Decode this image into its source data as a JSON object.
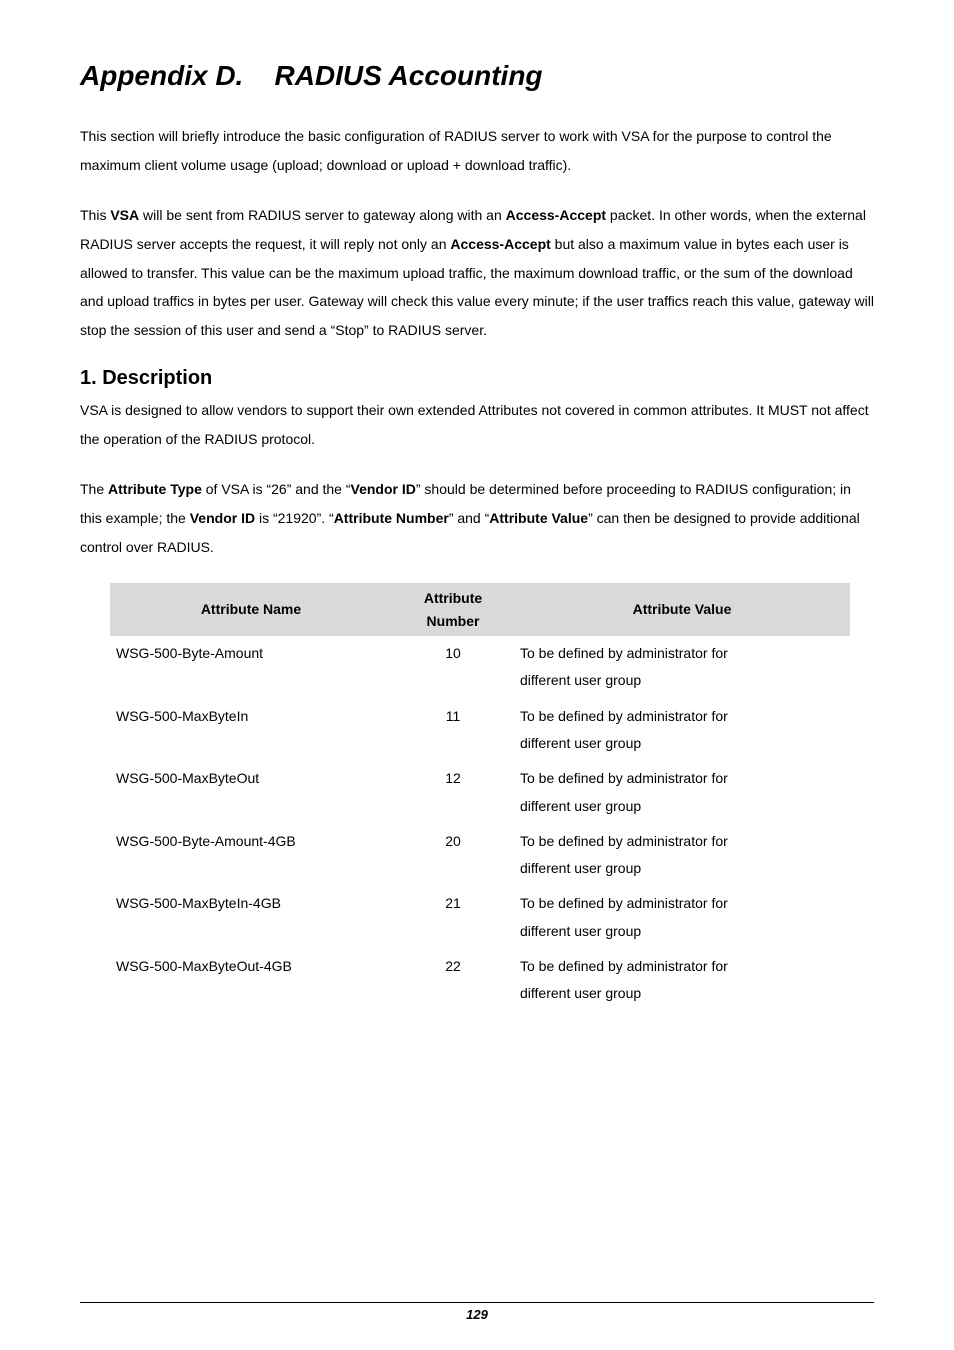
{
  "title_prefix": "Appendix D.",
  "title_main": "RADIUS Accounting",
  "intro_p1_a": "This section will briefly introduce the basic configuration of RADIUS server to work with VSA for the purpose to control the maximum client volume usage (upload; download or upload + download traffic).",
  "intro_p2_a": "This ",
  "intro_p2_vsa": "VSA",
  "intro_p2_b": " will be sent from RADIUS server to gateway along with an ",
  "intro_p2_accept": "Access-Accept",
  "intro_p2_c": " packet. In other words, when the external RADIUS server accepts the request, it will reply not only an ",
  "intro_p2_accept2": "Access-Accept",
  "intro_p2_d": " but also a maximum value in bytes each user is allowed to transfer. This value can be the maximum upload traffic, the maximum download traffic, or the sum of the download and upload traffics in bytes per user. Gateway will check this value every minute; if the user traffics reach this value, gateway will stop the session of this user and send a “Stop” to RADIUS server.",
  "section1_heading": "1. Description",
  "section1_p1": "VSA is designed to allow vendors to support their own extended Attributes not covered in common attributes. It MUST not affect the operation of the RADIUS protocol.",
  "section1_p2_a": "The ",
  "section1_p2_attrtype": "Attribute Type",
  "section1_p2_b": " of VSA is “26” and the “",
  "section1_p2_vendorid": "Vendor ID",
  "section1_p2_c": "” should be determined before proceeding to RADIUS configuration; in this example; the ",
  "section1_p2_vendorid2": "Vendor ID",
  "section1_p2_d": " is “21920”. “",
  "section1_p2_attrnum": "Attribute Number",
  "section1_p2_e": "” and “",
  "section1_p2_attrval": "Attribute Value",
  "section1_p2_f": "” can then be designed to provide additional control over RADIUS.",
  "table": {
    "headers": {
      "name": "Attribute Name",
      "number_l1": "Attribute",
      "number_l2": "Number",
      "value": "Attribute Value"
    },
    "rows": [
      {
        "name": "WSG-500-Byte-Amount",
        "number": "10",
        "value_l1": "To be defined by administrator for",
        "value_l2": "different user group"
      },
      {
        "name": "WSG-500-MaxByteIn",
        "number": "11",
        "value_l1": "To be defined by administrator for",
        "value_l2": "different user group"
      },
      {
        "name": "WSG-500-MaxByteOut",
        "number": "12",
        "value_l1": "To be defined by administrator for",
        "value_l2": "different user group"
      },
      {
        "name": "WSG-500-Byte-Amount-4GB",
        "number": "20",
        "value_l1": "To be defined by administrator for",
        "value_l2": "different user group"
      },
      {
        "name": "WSG-500-MaxByteIn-4GB",
        "number": "21",
        "value_l1": "To be defined by administrator for",
        "value_l2": "different user group"
      },
      {
        "name": "WSG-500-MaxByteOut-4GB",
        "number": "22",
        "value_l1": "To be defined by administrator for",
        "value_l2": "different user group"
      }
    ]
  },
  "page_number": "129"
}
